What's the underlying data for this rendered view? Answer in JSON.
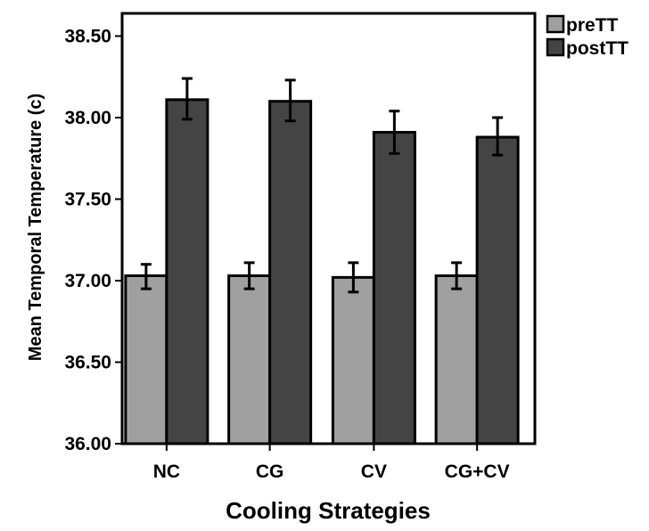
{
  "chart_data": {
    "type": "bar",
    "title": "",
    "xlabel": "Cooling Strategies",
    "ylabel": "Mean Temporal Temperature (c)",
    "ylim": [
      36.0,
      38.6
    ],
    "yticks": [
      36.0,
      36.5,
      37.0,
      37.5,
      38.0,
      38.5
    ],
    "ytick_labels": [
      "36.00",
      "36.50",
      "37.00",
      "37.50",
      "38.00",
      "38.50"
    ],
    "categories": [
      "NC",
      "CG",
      "CV",
      "CG+CV"
    ],
    "series": [
      {
        "name": "preTT",
        "color": "#a0a0a0",
        "values": [
          37.03,
          37.03,
          37.02,
          37.03
        ],
        "error_low": [
          36.95,
          36.95,
          36.93,
          36.95
        ],
        "error_high": [
          37.1,
          37.11,
          37.11,
          37.11
        ]
      },
      {
        "name": "postTT",
        "color": "#444444",
        "values": [
          38.11,
          38.1,
          37.91,
          37.88
        ],
        "error_low": [
          37.99,
          37.98,
          37.78,
          37.77
        ],
        "error_high": [
          38.24,
          38.23,
          38.04,
          38.0
        ]
      }
    ],
    "grid": false,
    "legend": {
      "placement": "top-right outside",
      "entries": [
        "preTT",
        "postTT"
      ]
    }
  }
}
